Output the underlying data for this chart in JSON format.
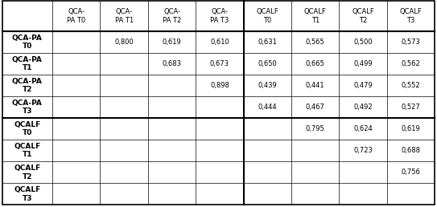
{
  "col_headers": [
    "QCA-\nPA T0",
    "QCA-\nPA T1",
    "QCA-\nPA T2",
    "QCA-\nPA T3",
    "QCALF\nT0",
    "QCALF\nT1",
    "QCALF\nT2",
    "QCALF\nT3"
  ],
  "row_headers": [
    "QCA-PA\nT0",
    "QCA-PA\nT1",
    "QCA-PA\nT2",
    "QCA-PA\nT3",
    "QCALF\nT0",
    "QCALF\nT1",
    "QCALF\nT2",
    "QCALF\nT3"
  ],
  "cell_data": [
    [
      "",
      "0,800",
      "0,619",
      "0,610",
      "0,631",
      "0,565",
      "0,500",
      "0,573"
    ],
    [
      "",
      "",
      "0,683",
      "0,673",
      "0,650",
      "0,665",
      "0,499",
      "0,562"
    ],
    [
      "",
      "",
      "",
      "0,898",
      "0,439",
      "0,441",
      "0,479",
      "0,552"
    ],
    [
      "",
      "",
      "",
      "",
      "0,444",
      "0,467",
      "0,492",
      "0,527"
    ],
    [
      "",
      "",
      "",
      "",
      "",
      "0,795",
      "0,624",
      "0,619"
    ],
    [
      "",
      "",
      "",
      "",
      "",
      "",
      "0,723",
      "0,688"
    ],
    [
      "",
      "",
      "",
      "",
      "",
      "",
      "",
      "0,756"
    ],
    [
      "",
      "",
      "",
      "",
      "",
      "",
      "",
      ""
    ]
  ],
  "thick_sep_col": 4,
  "thick_sep_row": 4,
  "bg_color": "#ffffff",
  "fontsize": 6.0,
  "row_header_fontsize": 6.5,
  "figwidth": 5.43,
  "figheight": 2.58,
  "dpi": 100
}
